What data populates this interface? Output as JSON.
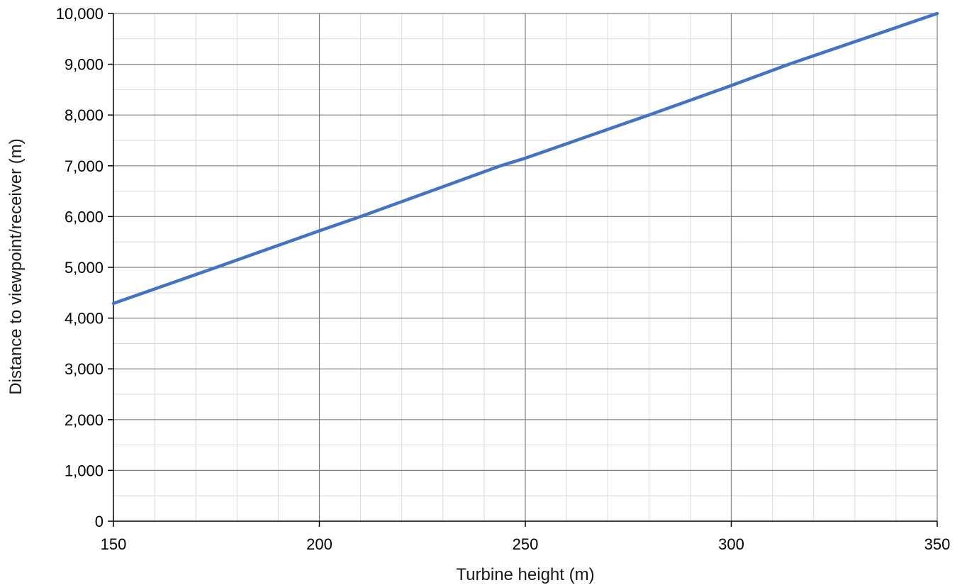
{
  "chart_data": {
    "type": "line",
    "xlabel": "Turbine height (m)",
    "ylabel": "Distance to viewpoint/receiver (m)",
    "xlim": [
      150,
      350
    ],
    "ylim": [
      0,
      10000
    ],
    "x_ticks": [
      150,
      200,
      250,
      300,
      350
    ],
    "x_tick_labels": [
      "150",
      "200",
      "250",
      "300",
      "350"
    ],
    "y_ticks": [
      0,
      1000,
      2000,
      3000,
      4000,
      5000,
      6000,
      7000,
      8000,
      9000,
      10000
    ],
    "y_tick_labels": [
      "0",
      "1,000",
      "2,000",
      "3,000",
      "4,000",
      "5,000",
      "6,000",
      "7,000",
      "8,000",
      "9,000",
      "10,000"
    ],
    "x_minor_step": 10,
    "y_minor_step": 500,
    "grid": true,
    "series": [
      {
        "color": "#4472c4",
        "x": [
          150,
          175,
          200,
          210,
          244,
          250,
          280,
          300,
          314,
          350
        ],
        "y": [
          4290,
          5000,
          5720,
          6000,
          7000,
          7150,
          8000,
          8580,
          9000,
          10000
        ]
      }
    ],
    "colors": {
      "major_grid": "#808080",
      "minor_grid": "#d9d9d9",
      "axis": "#000000"
    }
  }
}
